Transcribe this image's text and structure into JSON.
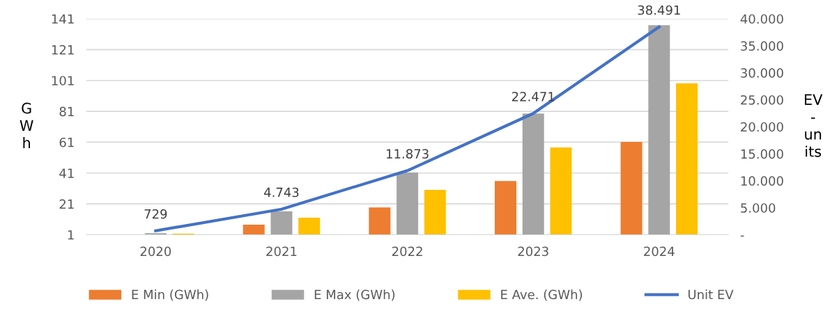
{
  "chart_data": {
    "type": "bar",
    "categories": [
      "2020",
      "2021",
      "2022",
      "2023",
      "2024"
    ],
    "ylabel": "G\nW\nh",
    "y2label": "EV\n-\nun\nits",
    "series": [
      {
        "name": "E Min (GWh)",
        "color": "#ed7d31",
        "values": [
          1,
          7.5,
          18.7,
          35.8,
          61.2
        ]
      },
      {
        "name": "E Max (GWh)",
        "color": "#a5a5a5",
        "values": [
          2,
          16.2,
          41.3,
          79.6,
          136.8
        ]
      },
      {
        "name": "E Ave. (GWh)",
        "color": "#ffc000",
        "values": [
          1.7,
          12,
          30.1,
          57.6,
          99.2
        ]
      },
      {
        "name": "Unit EV",
        "type": "line",
        "axis": "y2",
        "color": "#4472c4",
        "values": [
          729,
          4743,
          11873,
          22471,
          38491
        ],
        "value_labels": [
          "729",
          "4.743",
          "11.873",
          "22.471",
          "38.491"
        ]
      }
    ],
    "ylim": [
      1,
      141
    ],
    "yticks": [
      1,
      21,
      41,
      61,
      81,
      101,
      121,
      141
    ],
    "y2lim": [
      0,
      40000
    ],
    "y2ticks": [
      {
        "value": 0,
        "label": "-"
      },
      {
        "value": 5000,
        "label": "5.000"
      },
      {
        "value": 10000,
        "label": "10.000"
      },
      {
        "value": 15000,
        "label": "15.000"
      },
      {
        "value": 20000,
        "label": "20.000"
      },
      {
        "value": 25000,
        "label": "25.000"
      },
      {
        "value": 30000,
        "label": "30.000"
      },
      {
        "value": 35000,
        "label": "35.000"
      },
      {
        "value": 40000,
        "label": "40.000"
      }
    ],
    "grid": "y",
    "legend": "bottom",
    "marker": "none"
  }
}
